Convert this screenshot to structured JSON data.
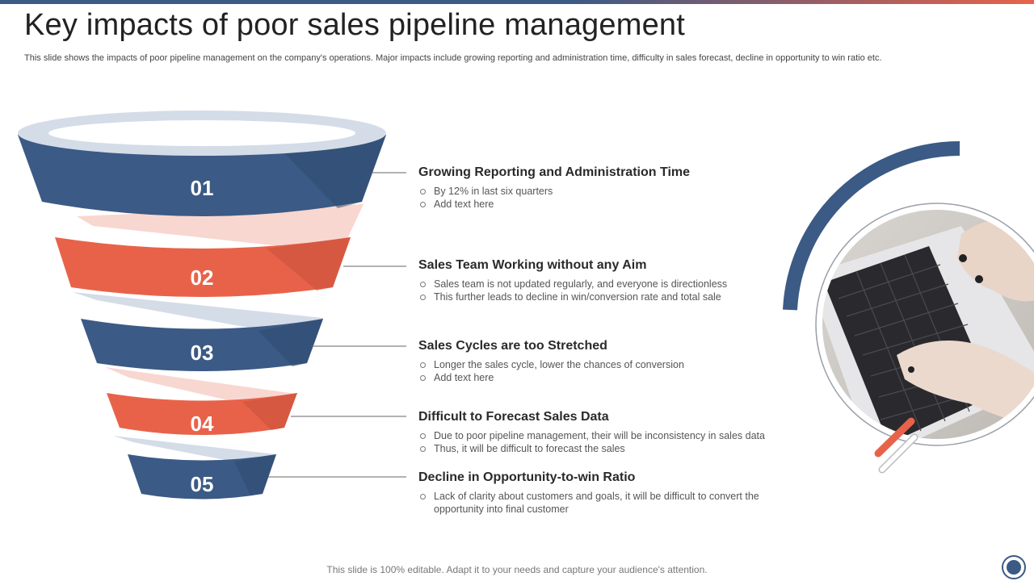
{
  "slide": {
    "title": "Key impacts of poor sales pipeline management",
    "subtitle": "This slide shows the impacts of poor pipeline management on the company's operations. Major impacts include growing reporting and administration time, difficulty in sales forecast, decline in opportunity to win ratio etc.",
    "footer": "This slide is 100% editable. Adapt it to your needs and capture your audience's attention."
  },
  "colors": {
    "navy": "#3b5a85",
    "orange": "#e8624a",
    "light_blue": "#d4dce8",
    "light_pink": "#f8d7d1"
  },
  "funnel": {
    "stages": [
      {
        "number": "01",
        "color": "navy"
      },
      {
        "number": "02",
        "color": "orange"
      },
      {
        "number": "03",
        "color": "navy"
      },
      {
        "number": "04",
        "color": "orange"
      },
      {
        "number": "05",
        "color": "navy"
      }
    ]
  },
  "items": [
    {
      "title": "Growing Reporting and Administration  Time",
      "bullets": [
        "By 12% in last six quarters",
        "Add text here"
      ]
    },
    {
      "title": "Sales Team Working without any Aim",
      "bullets": [
        "Sales team is not updated  regularly,  and everyone  is directionless",
        "This further leads to decline in win/conversion  rate and total sale"
      ]
    },
    {
      "title": "Sales Cycles are too Stretched",
      "bullets": [
        "Longer  the sales cycle, lower  the chances of conversion",
        "Add text here"
      ]
    },
    {
      "title": "Difficult to Forecast Sales Data",
      "bullets": [
        "Due to poor  pipeline  management,  their will be inconsistency in sales data",
        "Thus,  it will be difficult  to forecast  the sales"
      ]
    },
    {
      "title": "Decline in Opportunity-to-win Ratio",
      "bullets": [
        "Lack of clarity about customers and goals, it will be difficult to convert the opportunity into final customer"
      ]
    }
  ],
  "photo": {
    "icon": "laptop-typing-photo"
  }
}
